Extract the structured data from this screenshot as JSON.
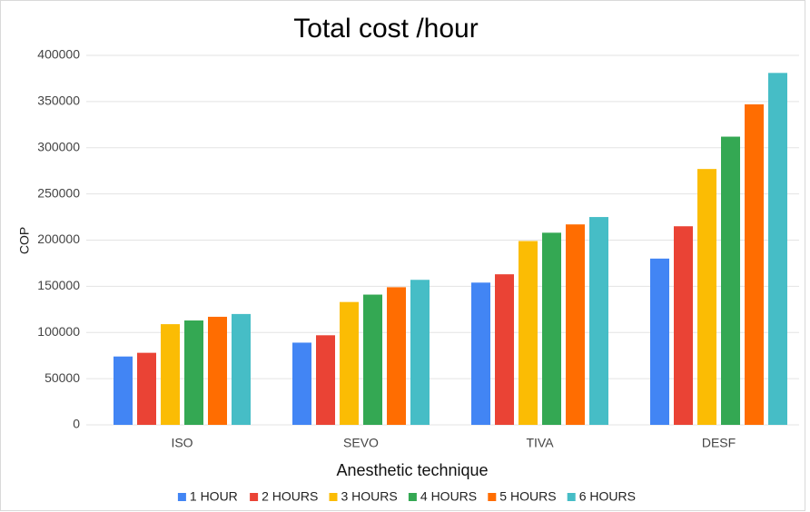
{
  "chart_data": {
    "type": "bar",
    "title": "Total cost /hour",
    "x_label": "Anesthetic technique",
    "y_label": "COP",
    "categories": [
      "ISO",
      "SEVO",
      "TIVA",
      "DESF"
    ],
    "series": [
      {
        "name": "1 HOUR",
        "color": "#4285f4",
        "values": [
          74000,
          89000,
          154000,
          180000
        ]
      },
      {
        "name": "2 HOURS",
        "color": "#ea4335",
        "values": [
          78000,
          97000,
          163000,
          215000
        ]
      },
      {
        "name": "3 HOURS",
        "color": "#fbbc04",
        "values": [
          109000,
          133000,
          199000,
          277000
        ]
      },
      {
        "name": "4 HOURS",
        "color": "#34a853",
        "values": [
          113000,
          141000,
          208000,
          312000
        ]
      },
      {
        "name": "5 HOURS",
        "color": "#ff6d01",
        "values": [
          117000,
          149000,
          217000,
          347000
        ]
      },
      {
        "name": "6 HOURS",
        "color": "#46bdc6",
        "values": [
          120000,
          157000,
          225000,
          381000
        ]
      }
    ],
    "ylim": [
      0,
      400000
    ],
    "yticks": [
      0,
      50000,
      100000,
      150000,
      200000,
      250000,
      300000,
      350000,
      400000
    ],
    "grid": true,
    "legend": "bottom"
  }
}
